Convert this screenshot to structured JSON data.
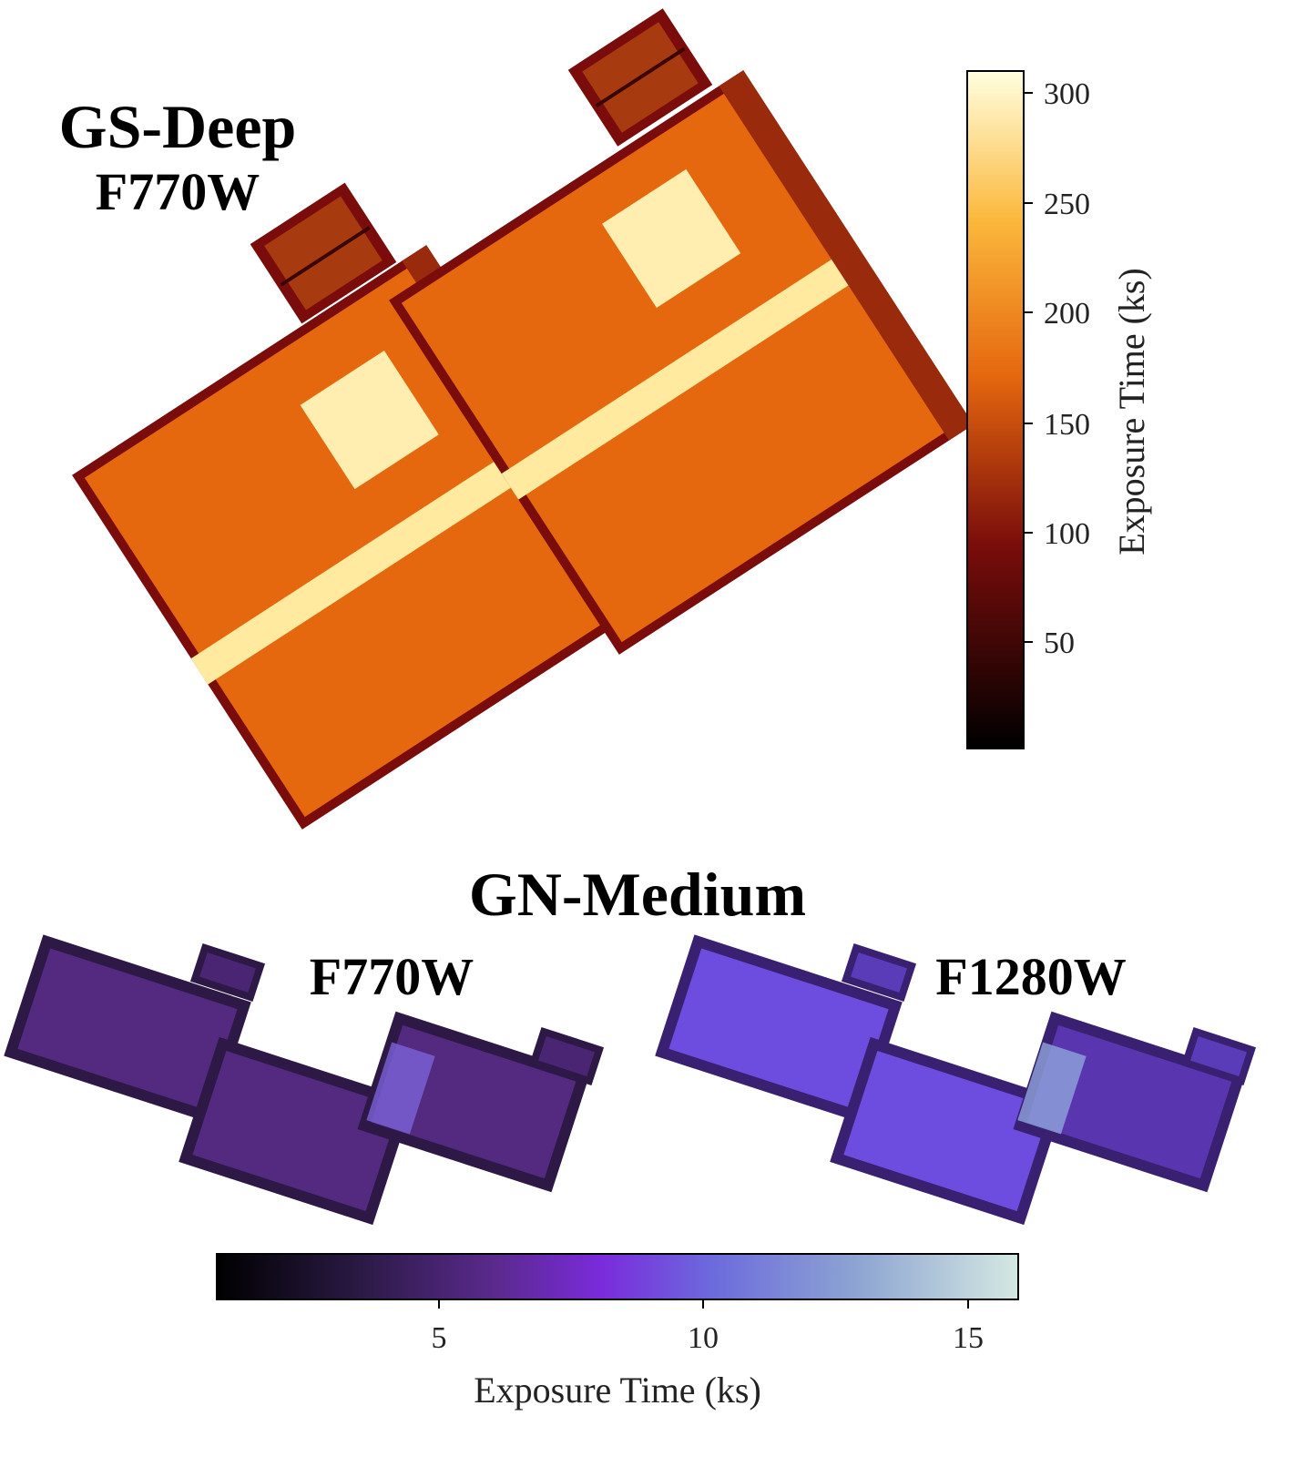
{
  "panels": {
    "gs_deep": {
      "title": "GS-Deep",
      "filter": "F770W"
    },
    "gn_medium": {
      "title": "GN-Medium",
      "filters": [
        "F770W",
        "F1280W"
      ]
    }
  },
  "colorbars": {
    "gs_deep": {
      "label": "Exposure Time (ks)",
      "orientation": "vertical",
      "ticks": [
        "50",
        "100",
        "150",
        "200",
        "250",
        "300"
      ],
      "colormap": "afmhot",
      "colors": [
        "#000000",
        "#7a0d0b",
        "#e5670e",
        "#fbb83c",
        "#ffffe0"
      ]
    },
    "gn_medium": {
      "label": "Exposure Time (ks)",
      "orientation": "horizontal",
      "ticks": [
        "5",
        "10",
        "15"
      ],
      "colormap": "purple",
      "colors": [
        "#000000",
        "#2b1a45",
        "#5b2a8f",
        "#7a2bdc",
        "#6c6bdd",
        "#8da5d2",
        "#d4e8e2"
      ]
    }
  },
  "colors": {
    "gs_field": "#e5670e",
    "gs_edge": "#7a0d0b",
    "gs_deep_strip": "#ffeaa0",
    "gn_f770w_field": "#542a80",
    "gn_f770w_edge": "#2d1846",
    "gn_f1280w_field": "#6d4de0",
    "gn_f1280w_edge": "#3a2070"
  }
}
